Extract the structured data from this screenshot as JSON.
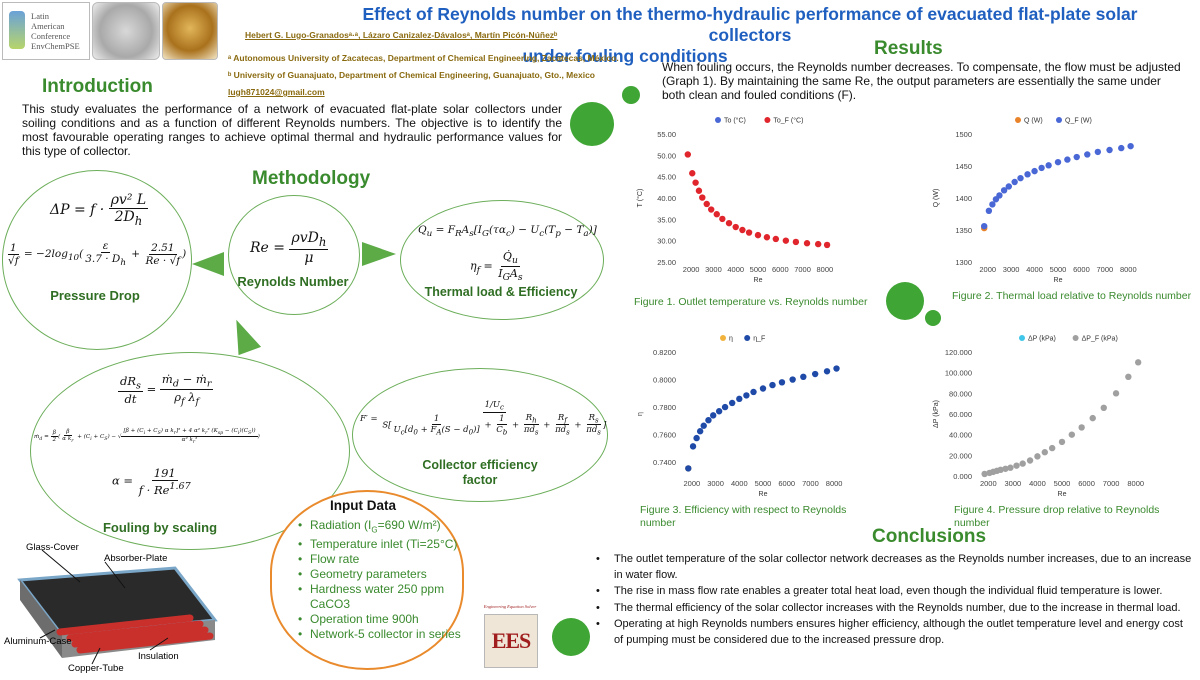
{
  "logos": {
    "laec_lines": [
      "Latin",
      "American",
      "Conference",
      "EnvChemPSE"
    ],
    "ees_text": "EES",
    "ees_caption": "Engineering Equation Solver"
  },
  "header": {
    "title_line1": "Effect of Reynolds number on the thermo-hydraulic performance of evacuated flat-plate solar collectors",
    "title_line2": "under fouling conditions",
    "authors": "Hebert G. Lugo-Granadosᵃ·ᵃ, Lázaro Canizalez-Dávalosᵃ, Martín Picón-Núñezᵇ",
    "affiliation_a": "ᵃ Autonomous University of Zacatecas, Department of Chemical Engineering, Zacatecas, México.",
    "affiliation_b": "ᵇ University of Guanajuato, Department of Chemical Engineering, Guanajuato, Gto., Mexico",
    "email": "lugh871024@gmail.com"
  },
  "introduction": {
    "heading": "Introduction",
    "text": "This study evaluates the performance of a network of evacuated flat-plate solar collectors under soiling conditions and as a function of different Reynolds numbers. The objective is to identify the most favourable operating ranges to achieve optimal thermal and hydraulic performance values for this type of collector."
  },
  "methodology": {
    "heading": "Methodology",
    "pressure_drop_label": "Pressure Drop",
    "reynolds_label": "Reynolds Number",
    "thermal_label": "Thermal load & Efficiency",
    "fouling_label": "Fouling by scaling",
    "efficiency_factor_label_1": "Collector efficiency",
    "efficiency_factor_label_2": "factor"
  },
  "input_data": {
    "heading": "Input Data",
    "items": [
      "Radiation (I₉=690 W/m²)",
      "Temperature inlet (Ti=25°C)",
      "Flow rate",
      "Geometry parameters",
      "Hardness water 250 ppm CaCO3",
      "Operation time 900h",
      "Network-5 collector in series"
    ]
  },
  "collector_diagram": {
    "glass": "Glass-Cover",
    "absorber": "Absorber-Plate",
    "case": "Aluminum-Case",
    "insulation": "Insulation",
    "tube": "Copper-Tube"
  },
  "results": {
    "heading": "Results",
    "text": "When fouling occurs, the Reynolds number decreases. To compensate, the flow must be adjusted (Graph 1). By maintaining the same Re, the output parameters are essentially the same under both clean and fouled conditions (F)."
  },
  "figures": {
    "fig1": "Figure 1. Outlet temperature vs. Reynolds number",
    "fig2": "Figure 2. Thermal load relative to Reynolds number",
    "fig3": "Figure 3. Efficiency with respect to Reynolds number",
    "fig4": "Figure 4. Pressure drop relative to Reynolds number"
  },
  "conclusions": {
    "heading": "Conclusions",
    "items": [
      "The outlet temperature of the solar collector network decreases as the Reynolds number increases, due to an increase in water flow.",
      "The rise in mass flow rate enables a greater total heat load, even though the individual fluid temperature is lower.",
      "The thermal efficiency of the solar collector increases with the Reynolds number, due to the increase in thermal load.",
      "Operating at high Reynolds numbers ensures higher efficiency, although the outlet temperature level and energy cost of pumping must be considered due to the increased pressure drop."
    ]
  },
  "colors": {
    "accent_green": "#3a8a2e",
    "title_blue": "#1f5fbf",
    "deco_green": "#3fa535",
    "input_border": "#e98a2c"
  },
  "chart_data": [
    {
      "id": "fig1",
      "type": "scatter",
      "xlabel": "Re",
      "ylabel": "T (°C)",
      "xlim": [
        1500,
        8500
      ],
      "ylim": [
        25,
        55
      ],
      "xticks": [
        2000,
        3000,
        4000,
        5000,
        6000,
        7000,
        8000
      ],
      "yticks": [
        25,
        30,
        35,
        40,
        45,
        50,
        55
      ],
      "ytick_labels": [
        "25.00",
        "30.00",
        "35.00",
        "40.00",
        "45.00",
        "50.00",
        "55.00"
      ],
      "legend": "top",
      "series": [
        {
          "name": "To (°C)",
          "color": "#4a67d6",
          "x": [],
          "y": []
        },
        {
          "name": "To_F (°C)",
          "color": "#e0262c",
          "x": [
            1850,
            2050,
            2200,
            2350,
            2500,
            2700,
            2900,
            3150,
            3400,
            3700,
            4000,
            4300,
            4600,
            5000,
            5400,
            5800,
            6250,
            6700,
            7200,
            7700,
            8100
          ],
          "y": [
            50.2,
            45.8,
            43.6,
            41.7,
            40.1,
            38.6,
            37.3,
            36.2,
            35.1,
            34.1,
            33.2,
            32.5,
            31.9,
            31.3,
            30.8,
            30.4,
            30.0,
            29.7,
            29.4,
            29.2,
            29.0
          ]
        }
      ]
    },
    {
      "id": "fig2",
      "type": "scatter",
      "xlabel": "Re",
      "ylabel": "Q (W)",
      "xlim": [
        1500,
        8500
      ],
      "ylim": [
        1300,
        1500
      ],
      "xticks": [
        2000,
        3000,
        4000,
        5000,
        6000,
        7000,
        8000
      ],
      "yticks": [
        1300,
        1350,
        1400,
        1450,
        1500
      ],
      "ytick_labels": [
        "1300",
        "1350",
        "1400",
        "1450",
        "1500"
      ],
      "legend": "top",
      "series": [
        {
          "name": "Q (W)",
          "color": "#e9832a",
          "x": [
            1850
          ],
          "y": [
            1353
          ]
        },
        {
          "name": "Q_F (W)",
          "color": "#4a67d6",
          "x": [
            1850,
            2050,
            2200,
            2350,
            2500,
            2700,
            2900,
            3150,
            3400,
            3700,
            4000,
            4300,
            4600,
            5000,
            5400,
            5800,
            6250,
            6700,
            7200,
            7700,
            8100
          ],
          "y": [
            1356,
            1380,
            1390,
            1398,
            1404,
            1412,
            1418,
            1425,
            1431,
            1437,
            1442,
            1447,
            1451,
            1456,
            1460,
            1464,
            1468,
            1472,
            1475,
            1478,
            1481
          ]
        }
      ]
    },
    {
      "id": "fig3",
      "type": "scatter",
      "xlabel": "Re",
      "ylabel": "η",
      "xlim": [
        1500,
        8500
      ],
      "ylim": [
        0.73,
        0.82
      ],
      "xticks": [
        2000,
        3000,
        4000,
        5000,
        6000,
        7000,
        8000
      ],
      "yticks": [
        0.74,
        0.76,
        0.78,
        0.8,
        0.82
      ],
      "ytick_labels": [
        "0.7400",
        "0.7600",
        "0.7800",
        "0.8000",
        "0.8200"
      ],
      "legend": "top",
      "series": [
        {
          "name": "η",
          "color": "#f2b33d",
          "x": [
            1850
          ],
          "y": [
            0.7355
          ]
        },
        {
          "name": "η_F",
          "color": "#1f4aa8",
          "x": [
            1850,
            2050,
            2200,
            2350,
            2500,
            2700,
            2900,
            3150,
            3400,
            3700,
            4000,
            4300,
            4600,
            5000,
            5400,
            5800,
            6250,
            6700,
            7200,
            7700,
            8100
          ],
          "y": [
            0.7355,
            0.7515,
            0.7575,
            0.7625,
            0.7665,
            0.7705,
            0.774,
            0.777,
            0.78,
            0.783,
            0.786,
            0.7885,
            0.791,
            0.7935,
            0.796,
            0.798,
            0.8,
            0.802,
            0.804,
            0.806,
            0.808
          ]
        }
      ]
    },
    {
      "id": "fig4",
      "type": "scatter",
      "xlabel": "ΔP (kPa)",
      "ylabel": "ΔP (kPa)",
      "axis_title_x": "Re",
      "xlim": [
        1500,
        8500
      ],
      "ylim": [
        0,
        120
      ],
      "xticks": [
        2000,
        3000,
        4000,
        5000,
        6000,
        7000,
        8000
      ],
      "yticks": [
        0,
        20,
        40,
        60,
        80,
        100,
        120
      ],
      "ytick_labels": [
        "0.000",
        "20.000",
        "40.000",
        "60.000",
        "80.000",
        "100.000",
        "120.000"
      ],
      "legend": "top",
      "series": [
        {
          "name": "ΔP (kPa)",
          "color": "#3fc6e8",
          "x": [],
          "y": []
        },
        {
          "name": "ΔP_F (kPa)",
          "color": "#a0a0a0",
          "x": [
            1850,
            2050,
            2200,
            2350,
            2500,
            2700,
            2900,
            3150,
            3400,
            3700,
            4000,
            4300,
            4600,
            5000,
            5400,
            5800,
            6250,
            6700,
            7200,
            7700,
            8100
          ],
          "y": [
            2,
            3,
            4,
            5,
            6,
            7,
            8,
            10,
            12,
            15,
            19,
            23,
            27,
            33,
            40,
            47,
            56,
            66,
            80,
            96,
            110
          ]
        }
      ]
    }
  ]
}
